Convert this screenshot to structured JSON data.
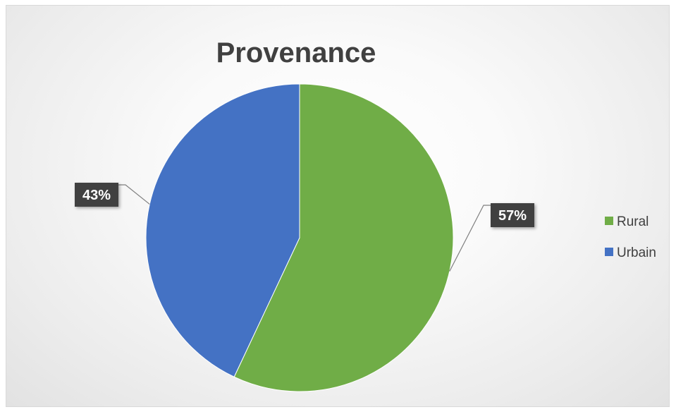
{
  "chart_data": {
    "type": "pie",
    "title": "Provenance",
    "categories": [
      "Rural",
      "Urbain"
    ],
    "values": [
      57,
      43
    ],
    "labels": [
      "57%",
      "43%"
    ],
    "colors": [
      "#70ad47",
      "#4472c4"
    ],
    "legend": "right"
  }
}
